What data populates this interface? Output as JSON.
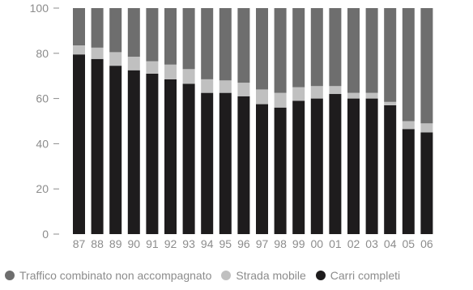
{
  "chart_data": {
    "type": "bar",
    "stacked": true,
    "categories": [
      "87",
      "88",
      "89",
      "90",
      "91",
      "92",
      "93",
      "94",
      "95",
      "96",
      "97",
      "98",
      "99",
      "00",
      "01",
      "02",
      "03",
      "04",
      "05",
      "06"
    ],
    "series": [
      {
        "name": "Carri completi",
        "color": "#1e1c1d",
        "values": [
          79.5,
          77.5,
          74.5,
          72.5,
          71,
          68.5,
          66.5,
          62.5,
          62.5,
          61,
          57.5,
          56,
          59,
          60,
          62,
          60,
          60,
          57,
          46.5,
          45
        ]
      },
      {
        "name": "Strada mobile",
        "color": "#c0c0c0",
        "values": [
          4,
          5,
          6,
          6,
          5.5,
          6.5,
          6.5,
          6,
          5.5,
          6,
          6.5,
          6.5,
          6,
          5.5,
          3.5,
          2.5,
          2.5,
          1.5,
          3.5,
          4
        ]
      },
      {
        "name": "Traffico combinato non accompagnato",
        "color": "#6e6e6e",
        "values": [
          16.5,
          17.5,
          19.5,
          21.5,
          23.5,
          25,
          27,
          31.5,
          32,
          33,
          36,
          37.5,
          35,
          34.5,
          34.5,
          37.5,
          37.5,
          41.5,
          50,
          51
        ]
      }
    ],
    "ylim": [
      0,
      100
    ],
    "yticks": [
      "0",
      "20",
      "40",
      "60",
      "80",
      "100"
    ],
    "grid": false,
    "legend": {
      "position": "bottom",
      "order": [
        "Traffico combinato non accompagnato",
        "Strada mobile",
        "Carri completi"
      ]
    }
  }
}
